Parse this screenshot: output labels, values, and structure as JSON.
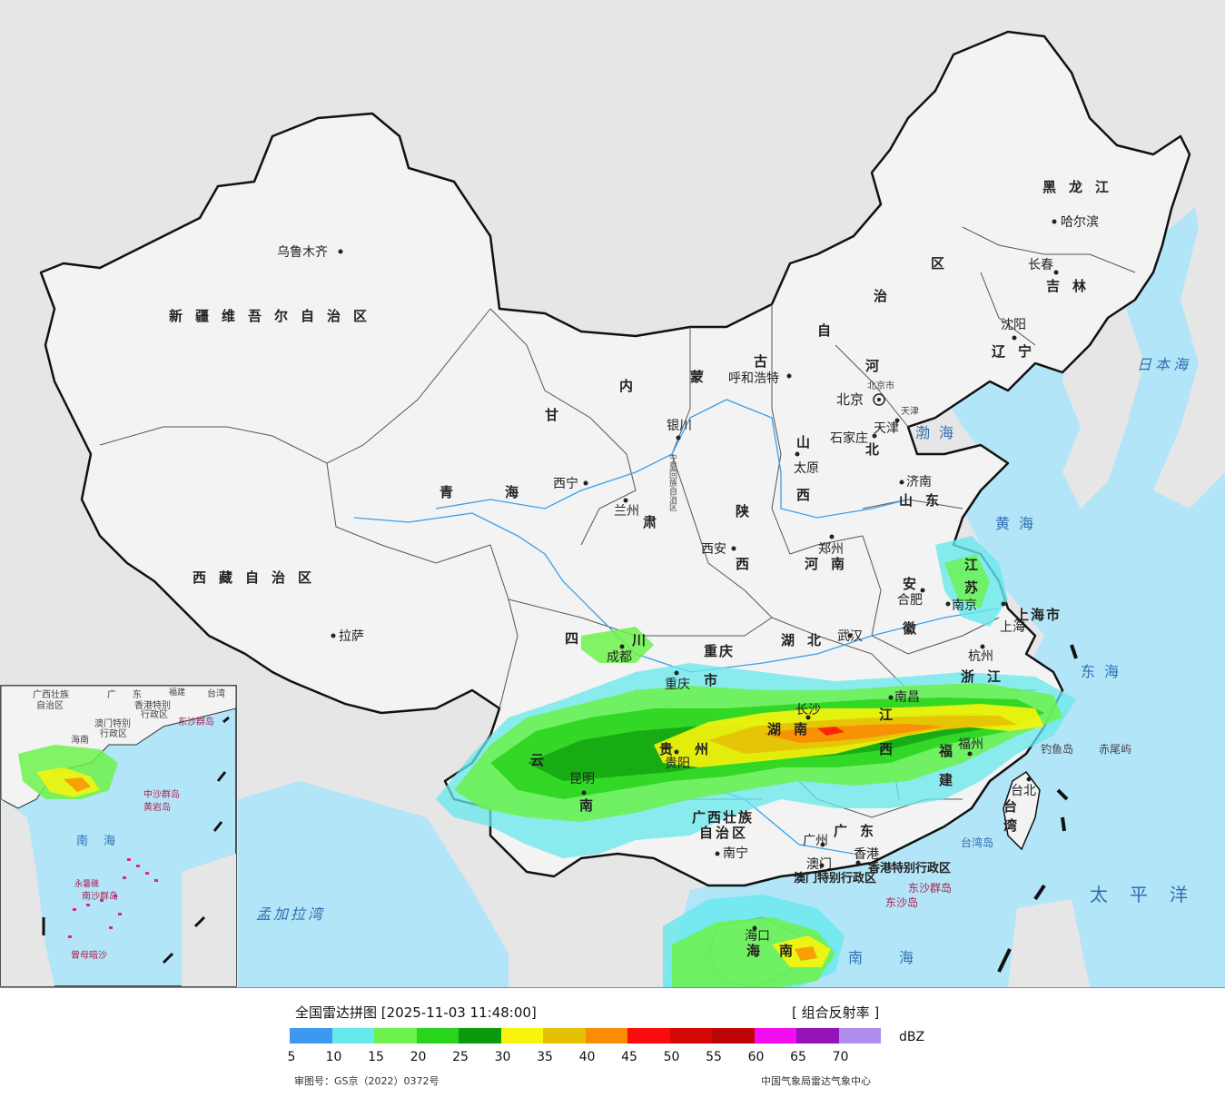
{
  "map": {
    "provinces": [
      {
        "id": "xinjiang",
        "text": "新疆维吾尔自治区"
      },
      {
        "id": "xizang",
        "text": "西藏自治区"
      },
      {
        "id": "qinghai1",
        "text": "青"
      },
      {
        "id": "qinghai2",
        "text": "海"
      },
      {
        "id": "gansu1",
        "text": "甘"
      },
      {
        "id": "gansu2",
        "text": "肃"
      },
      {
        "id": "neimenggu1",
        "text": "内"
      },
      {
        "id": "neimenggu2",
        "text": "蒙"
      },
      {
        "id": "neimenggu3",
        "text": "古"
      },
      {
        "id": "neimenggu4",
        "text": "自"
      },
      {
        "id": "neimenggu5",
        "text": "治"
      },
      {
        "id": "neimenggu6",
        "text": "区"
      },
      {
        "id": "heilongjiang",
        "text": "黑龙江"
      },
      {
        "id": "jilin",
        "text": "吉林"
      },
      {
        "id": "liaoning",
        "text": "辽宁"
      },
      {
        "id": "hebei1",
        "text": "河"
      },
      {
        "id": "hebei2",
        "text": "北"
      },
      {
        "id": "shanxi1",
        "text": "山"
      },
      {
        "id": "shanxi2",
        "text": "西"
      },
      {
        "id": "shaanxi1",
        "text": "陕"
      },
      {
        "id": "shaanxi2",
        "text": "西"
      },
      {
        "id": "ningxia",
        "text": "宁夏回族自治区"
      },
      {
        "id": "shandong",
        "text": "山东"
      },
      {
        "id": "henan",
        "text": "河南"
      },
      {
        "id": "jiangsu1",
        "text": "江"
      },
      {
        "id": "jiangsu2",
        "text": "苏"
      },
      {
        "id": "anhui1",
        "text": "安"
      },
      {
        "id": "anhui2",
        "text": "徽"
      },
      {
        "id": "shanghai",
        "text": "上海市"
      },
      {
        "id": "hubei",
        "text": "湖北"
      },
      {
        "id": "sichuan1",
        "text": "四"
      },
      {
        "id": "sichuan2",
        "text": "川"
      },
      {
        "id": "chongqing1",
        "text": "重庆"
      },
      {
        "id": "chongqing2",
        "text": "市"
      },
      {
        "id": "zhejiang",
        "text": "浙江"
      },
      {
        "id": "hunan",
        "text": "湖南"
      },
      {
        "id": "jiangxi1",
        "text": "江"
      },
      {
        "id": "jiangxi2",
        "text": "西"
      },
      {
        "id": "guizhou1",
        "text": "贵"
      },
      {
        "id": "guizhou2",
        "text": "州"
      },
      {
        "id": "yunnan1",
        "text": "云"
      },
      {
        "id": "yunnan2",
        "text": "南"
      },
      {
        "id": "fujian1",
        "text": "福"
      },
      {
        "id": "fujian2",
        "text": "建"
      },
      {
        "id": "guangxi1",
        "text": "广西壮族"
      },
      {
        "id": "guangxi2",
        "text": "自治区"
      },
      {
        "id": "guangdong",
        "text": "广东"
      },
      {
        "id": "taiwan",
        "text": "台湾"
      },
      {
        "id": "hainan1",
        "text": "海"
      },
      {
        "id": "hainan2",
        "text": "南"
      },
      {
        "id": "hk",
        "text": "香港特别行政区"
      },
      {
        "id": "macau",
        "text": "澳门特别行政区"
      }
    ],
    "cities": [
      {
        "id": "wulumuqi",
        "text": "乌鲁木齐"
      },
      {
        "id": "lasa",
        "text": "拉萨"
      },
      {
        "id": "xining",
        "text": "西宁"
      },
      {
        "id": "lanzhou",
        "text": "兰州"
      },
      {
        "id": "yinchuan",
        "text": "银川"
      },
      {
        "id": "huhehaote",
        "text": "呼和浩特"
      },
      {
        "id": "beijing",
        "text": "北京"
      },
      {
        "id": "beijingshi",
        "text": "北京市"
      },
      {
        "id": "tianjin",
        "text": "天津"
      },
      {
        "id": "tianjinshi",
        "text": "天津"
      },
      {
        "id": "shijiazhuang",
        "text": "石家庄"
      },
      {
        "id": "taiyuan",
        "text": "太原"
      },
      {
        "id": "jinan",
        "text": "济南"
      },
      {
        "id": "zhengzhou",
        "text": "郑州"
      },
      {
        "id": "xian",
        "text": "西安"
      },
      {
        "id": "hefei",
        "text": "合肥"
      },
      {
        "id": "nanjing",
        "text": "南京"
      },
      {
        "id": "shanghaic",
        "text": "上海"
      },
      {
        "id": "hangzhou",
        "text": "杭州"
      },
      {
        "id": "wuhan",
        "text": "武汉"
      },
      {
        "id": "chengdu",
        "text": "成都"
      },
      {
        "id": "chongqingc",
        "text": "重庆"
      },
      {
        "id": "guiyang",
        "text": "贵阳"
      },
      {
        "id": "kunming",
        "text": "昆明"
      },
      {
        "id": "changsha",
        "text": "长沙"
      },
      {
        "id": "nanchang",
        "text": "南昌"
      },
      {
        "id": "fuzhou",
        "text": "福州"
      },
      {
        "id": "nanning",
        "text": "南宁"
      },
      {
        "id": "guangzhou",
        "text": "广州"
      },
      {
        "id": "aomen",
        "text": "澳门"
      },
      {
        "id": "xianggang",
        "text": "香港"
      },
      {
        "id": "haikou",
        "text": "海口"
      },
      {
        "id": "taibei",
        "text": "台北"
      },
      {
        "id": "haerbin",
        "text": "哈尔滨"
      },
      {
        "id": "changchun",
        "text": "长春"
      },
      {
        "id": "shenyang",
        "text": "沈阳"
      }
    ],
    "seas": [
      {
        "id": "bohai",
        "text": "渤海"
      },
      {
        "id": "huanghai",
        "text": "黄海"
      },
      {
        "id": "donghai",
        "text": "东海"
      },
      {
        "id": "nanhai",
        "text": "南海"
      },
      {
        "id": "ribenhai",
        "text": "日本海"
      },
      {
        "id": "taipingyang",
        "text": "太平洋"
      },
      {
        "id": "mengjialawan",
        "text": "孟加拉湾"
      }
    ],
    "islands": [
      {
        "id": "diaoyu",
        "text": "钓鱼岛"
      },
      {
        "id": "chiwei",
        "text": "赤尾屿"
      },
      {
        "id": "taiwandao",
        "text": "台湾岛"
      },
      {
        "id": "dongsha1",
        "text": "东沙群岛"
      },
      {
        "id": "dongsha2",
        "text": "东沙岛"
      }
    ],
    "inset": [
      {
        "id": "in1",
        "text": "广西壮族"
      },
      {
        "id": "in2",
        "text": "自治区"
      },
      {
        "id": "in3",
        "text": "广"
      },
      {
        "id": "in4",
        "text": "东"
      },
      {
        "id": "in5",
        "text": "福建"
      },
      {
        "id": "in6",
        "text": "台湾"
      },
      {
        "id": "in7",
        "text": "香港特别"
      },
      {
        "id": "in8",
        "text": "行政区"
      },
      {
        "id": "in9",
        "text": "澳门特别"
      },
      {
        "id": "in10",
        "text": "行政区"
      },
      {
        "id": "in11",
        "text": "东沙群岛"
      },
      {
        "id": "in12",
        "text": "海南"
      },
      {
        "id": "in13",
        "text": "中沙群岛"
      },
      {
        "id": "in14",
        "text": "黄岩岛"
      },
      {
        "id": "in15",
        "text": "南"
      },
      {
        "id": "in16",
        "text": "海"
      },
      {
        "id": "in17",
        "text": "南沙群岛"
      },
      {
        "id": "in18",
        "text": "曾母暗沙"
      },
      {
        "id": "in19",
        "text": "永暑礁"
      }
    ],
    "colors": {
      "land": "#f3f3f3",
      "outside": "#e6e6e6",
      "sea": "#b3e5f8",
      "border": "#111111",
      "river": "#3aa0e8"
    }
  },
  "legend": {
    "title": "全国雷达拼图 [2025-11-03 11:48:00]",
    "type": "[ 组合反射率 ]",
    "unit": "dBZ",
    "ticks": [
      "5",
      "10",
      "15",
      "20",
      "25",
      "30",
      "35",
      "40",
      "45",
      "50",
      "55",
      "60",
      "65",
      "70"
    ],
    "colors": [
      "#3d98f0",
      "#66e8ec",
      "#6cf24a",
      "#28d41c",
      "#0c9a0c",
      "#f8f40c",
      "#e6c004",
      "#fa8c04",
      "#fa0c0c",
      "#d40606",
      "#bc0404",
      "#f20cf2",
      "#9412b8",
      "#b08ef0"
    ],
    "approval": "审图号：GS京（2022）0372号",
    "source": "中国气象局雷达气象中心"
  }
}
